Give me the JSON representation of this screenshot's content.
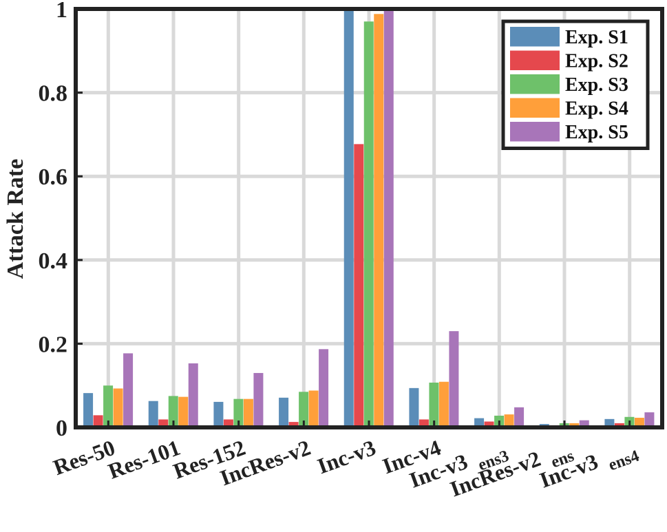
{
  "chart_data": {
    "type": "bar",
    "title": "",
    "xlabel": "",
    "ylabel": "Attack Rate",
    "ylim": [
      0,
      1
    ],
    "yticks": [
      {
        "value": 0,
        "label": "0"
      },
      {
        "value": 0.2,
        "label": "0.2"
      },
      {
        "value": 0.4,
        "label": "0.4"
      },
      {
        "value": 0.6,
        "label": "0.6"
      },
      {
        "value": 0.8,
        "label": "0.8"
      },
      {
        "value": 1,
        "label": "1"
      }
    ],
    "grid": true,
    "legend_position": "top-right",
    "categories": [
      "Res-50",
      "Res-101",
      "Res-152",
      "IncRes-v2",
      "Inc-v3",
      "Inc-v4",
      "Inc-v3 ens3",
      "IncRes-v2 ens",
      "Inc-v3 ens4"
    ],
    "category_labels": [
      {
        "main": "Res-50",
        "sub": ""
      },
      {
        "main": "Res-101",
        "sub": ""
      },
      {
        "main": "Res-152",
        "sub": ""
      },
      {
        "main": "IncRes-v2",
        "sub": ""
      },
      {
        "main": "Inc-v3",
        "sub": ""
      },
      {
        "main": "Inc-v4",
        "sub": ""
      },
      {
        "main": "Inc-v3",
        "sub": "ens3"
      },
      {
        "main": "IncRes-v2",
        "sub": "ens"
      },
      {
        "main": "Inc-v3",
        "sub": "ens4"
      }
    ],
    "series": [
      {
        "name": "Exp. S1",
        "color": "#5b8db8",
        "values": [
          0.082,
          0.063,
          0.061,
          0.071,
          1.0,
          0.094,
          0.022,
          0.008,
          0.02
        ]
      },
      {
        "name": "Exp. S2",
        "color": "#e5484d",
        "values": [
          0.029,
          0.019,
          0.019,
          0.013,
          0.677,
          0.019,
          0.014,
          0.005,
          0.01
        ]
      },
      {
        "name": "Exp. S3",
        "color": "#6ec16a",
        "values": [
          0.1,
          0.075,
          0.068,
          0.085,
          0.97,
          0.107,
          0.028,
          0.01,
          0.025
        ]
      },
      {
        "name": "Exp. S4",
        "color": "#ff9f3a",
        "values": [
          0.093,
          0.073,
          0.068,
          0.088,
          0.988,
          0.109,
          0.031,
          0.01,
          0.023
        ]
      },
      {
        "name": "Exp. S5",
        "color": "#a875b9",
        "values": [
          0.177,
          0.153,
          0.13,
          0.187,
          0.995,
          0.23,
          0.048,
          0.017,
          0.036
        ]
      }
    ]
  }
}
